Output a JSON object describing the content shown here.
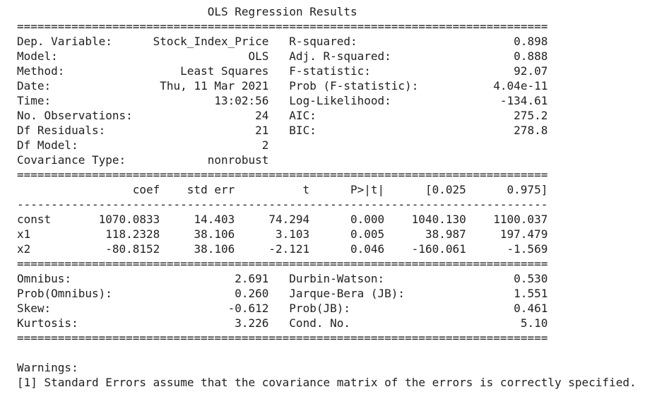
{
  "title": "OLS Regression Results",
  "colors": {
    "text": "#212121",
    "background": "#ffffff"
  },
  "separators": {
    "double": "==============================================================================",
    "dash": "------------------------------------------------------------------------------"
  },
  "summary": {
    "rows": [
      {
        "left_label": "Dep. Variable:",
        "left_value": "Stock_Index_Price",
        "right_label": "R-squared:",
        "right_value": "0.898"
      },
      {
        "left_label": "Model:",
        "left_value": "OLS",
        "right_label": "Adj. R-squared:",
        "right_value": "0.888"
      },
      {
        "left_label": "Method:",
        "left_value": "Least Squares",
        "right_label": "F-statistic:",
        "right_value": "92.07"
      },
      {
        "left_label": "Date:",
        "left_value": "Thu, 11 Mar 2021",
        "right_label": "Prob (F-statistic):",
        "right_value": "4.04e-11"
      },
      {
        "left_label": "Time:",
        "left_value": "13:02:56",
        "right_label": "Log-Likelihood:",
        "right_value": "-134.61"
      },
      {
        "left_label": "No. Observations:",
        "left_value": "24",
        "right_label": "AIC:",
        "right_value": "275.2"
      },
      {
        "left_label": "Df Residuals:",
        "left_value": "21",
        "right_label": "BIC:",
        "right_value": "278.8"
      },
      {
        "left_label": "Df Model:",
        "left_value": "2",
        "right_label": "",
        "right_value": ""
      },
      {
        "left_label": "Covariance Type:",
        "left_value": "nonrobust",
        "right_label": "",
        "right_value": ""
      }
    ]
  },
  "coefficients": {
    "headers": {
      "name": "",
      "coef": "coef",
      "std_err": "std err",
      "t": "t",
      "p": "P>|t|",
      "ci_low": "[0.025",
      "ci_high": "0.975]"
    },
    "rows": [
      {
        "name": "const",
        "coef": "1070.0833",
        "std_err": "14.403",
        "t": "74.294",
        "p": "0.000",
        "ci_low": "1040.130",
        "ci_high": "1100.037"
      },
      {
        "name": "x1",
        "coef": "118.2328",
        "std_err": "38.106",
        "t": "3.103",
        "p": "0.005",
        "ci_low": "38.987",
        "ci_high": "197.479"
      },
      {
        "name": "x2",
        "coef": "-80.8152",
        "std_err": "38.106",
        "t": "-2.121",
        "p": "0.046",
        "ci_low": "-160.061",
        "ci_high": "-1.569"
      }
    ]
  },
  "diagnostics": {
    "rows": [
      {
        "left_label": "Omnibus:",
        "left_value": "2.691",
        "right_label": "Durbin-Watson:",
        "right_value": "0.530"
      },
      {
        "left_label": "Prob(Omnibus):",
        "left_value": "0.260",
        "right_label": "Jarque-Bera (JB):",
        "right_value": "1.551"
      },
      {
        "left_label": "Skew:",
        "left_value": "-0.612",
        "right_label": "Prob(JB):",
        "right_value": "0.461"
      },
      {
        "left_label": "Kurtosis:",
        "left_value": "3.226",
        "right_label": "Cond. No.",
        "right_value": "5.10"
      }
    ]
  },
  "warnings": {
    "heading": "Warnings:",
    "lines": [
      "[1] Standard Errors assume that the covariance matrix of the errors is correctly specified."
    ]
  }
}
